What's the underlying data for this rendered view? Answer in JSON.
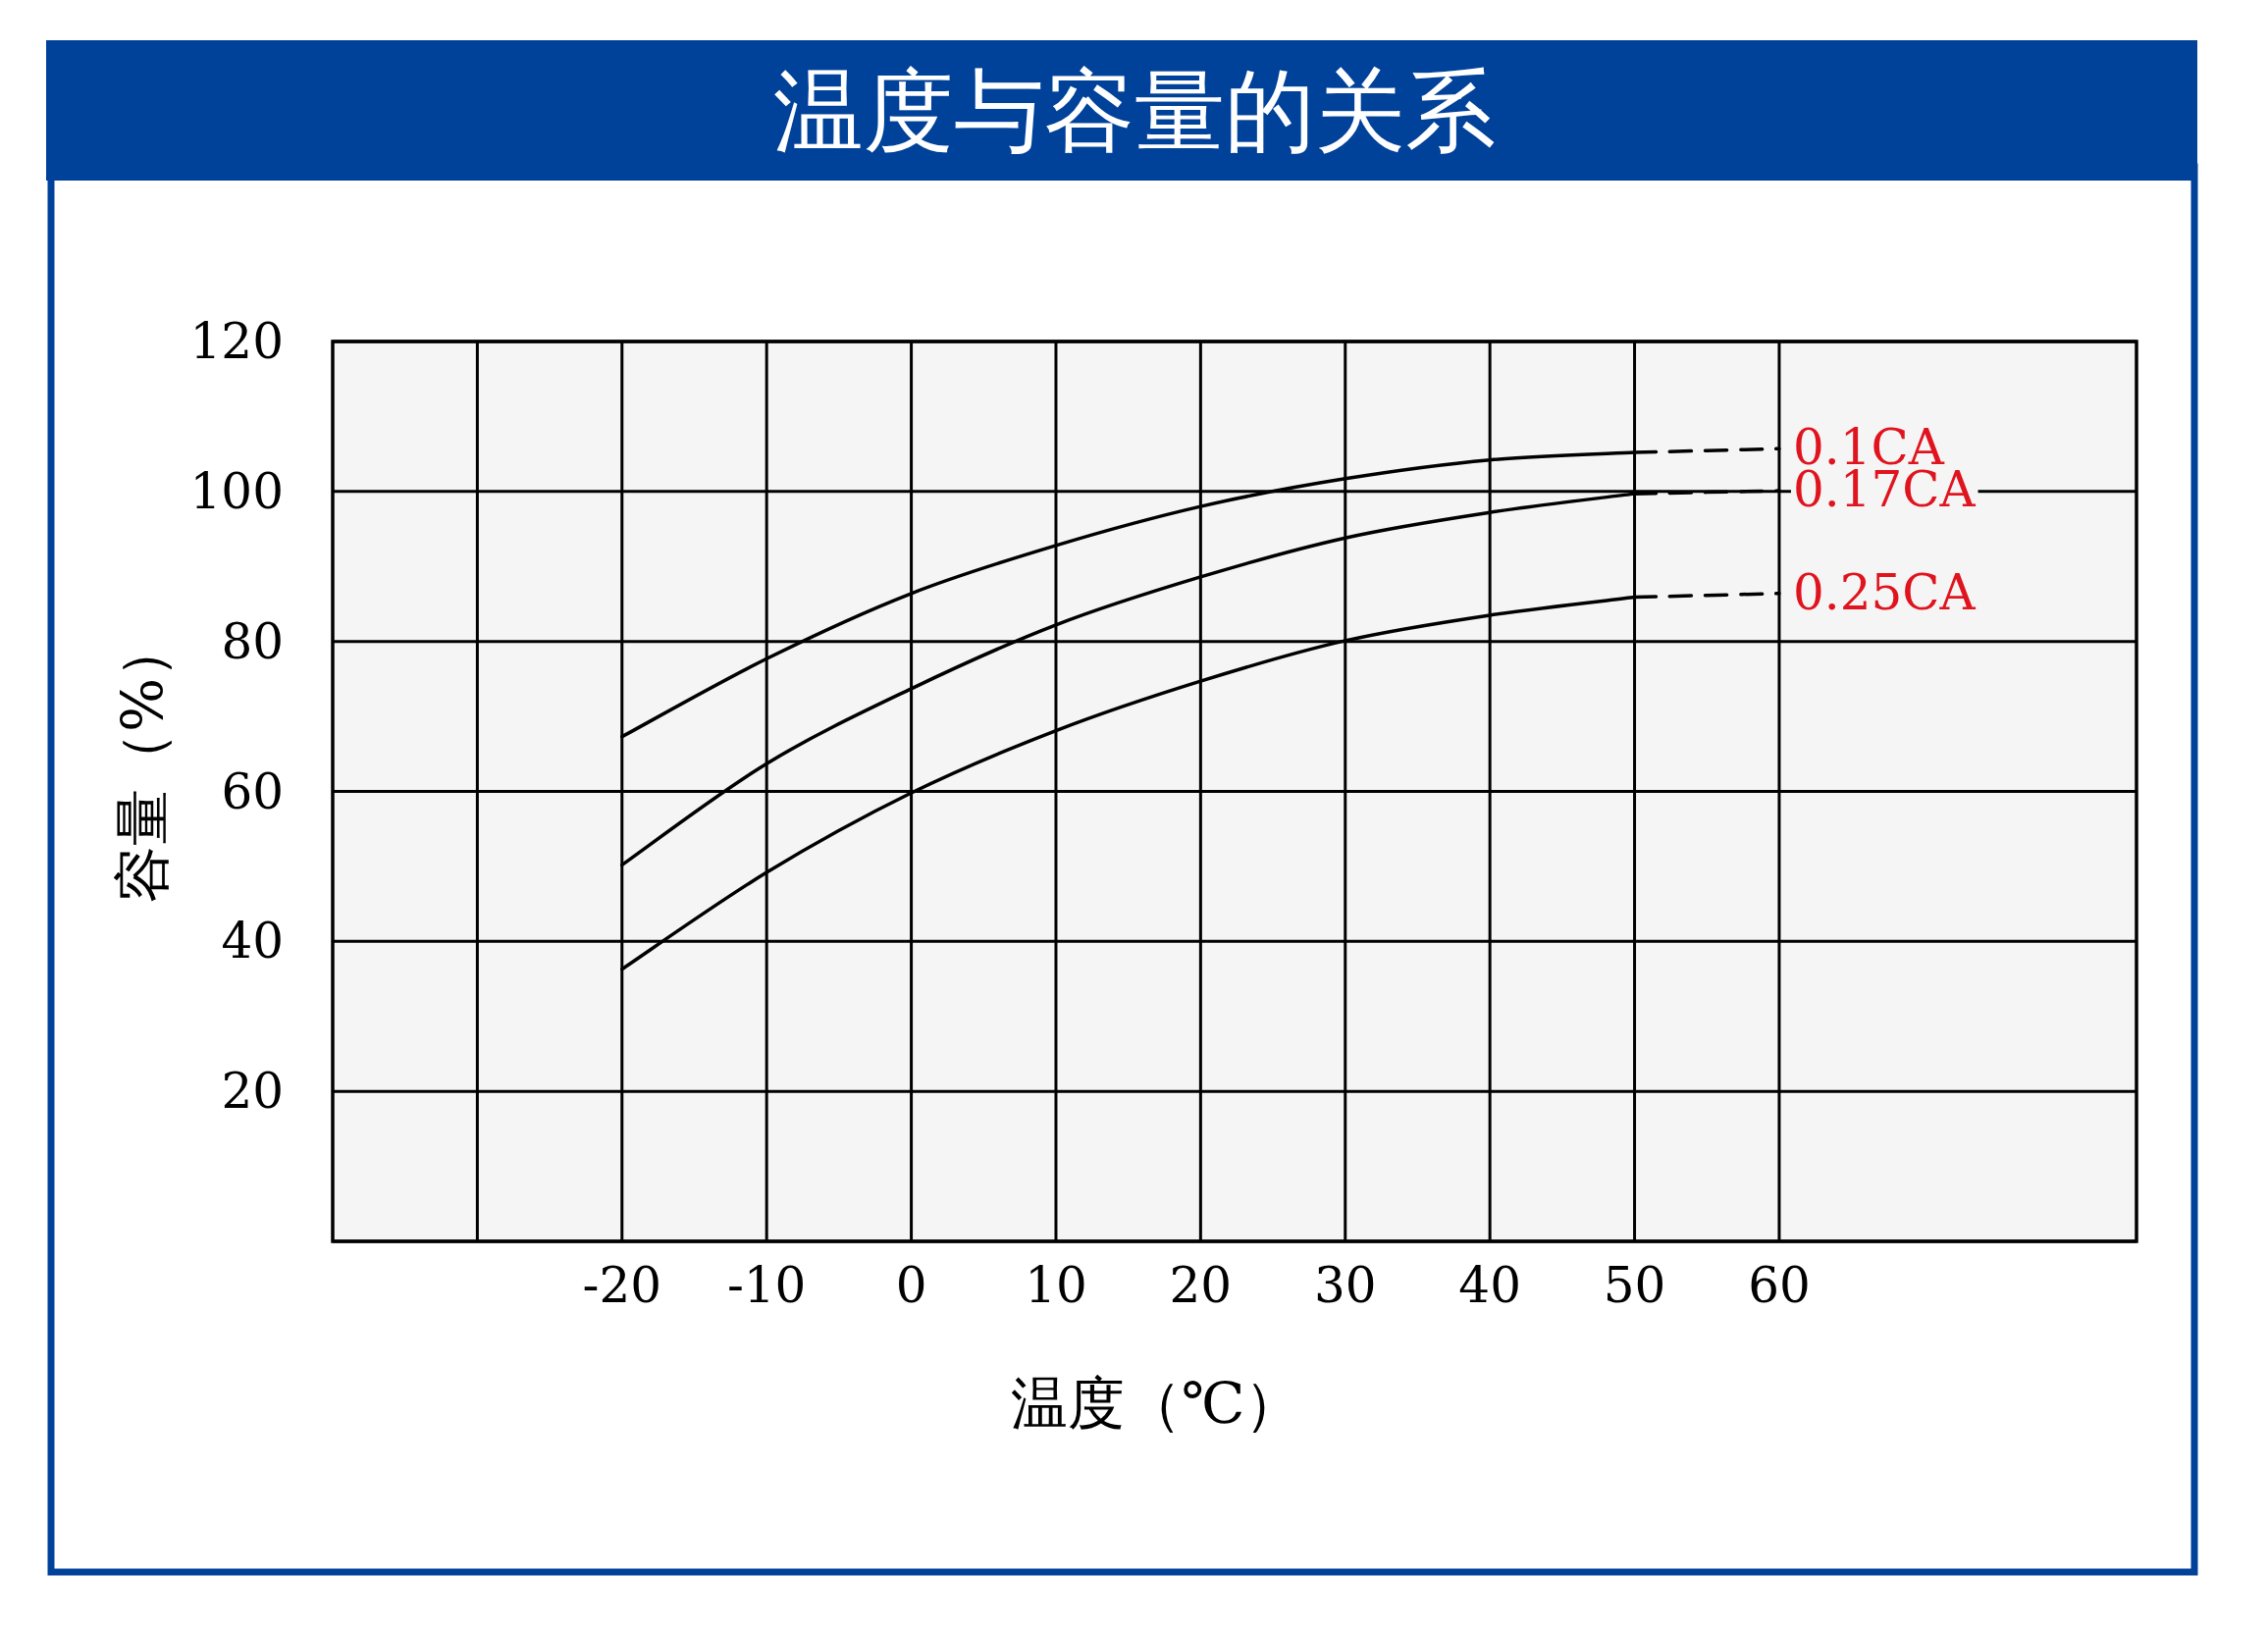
{
  "chart_data": {
    "type": "line",
    "title": "温度与容量的关系",
    "xlabel": "温度（℃）",
    "ylabel": "容量（%）",
    "xlim": [
      -40,
      84.7
    ],
    "ylim": [
      0,
      120
    ],
    "xticks": [
      {
        "value": -30,
        "label": null
      },
      -20,
      -10,
      0,
      10,
      20,
      30,
      40,
      50,
      60
    ],
    "yticks": [
      {
        "value": 0,
        "label": null
      },
      20,
      40,
      60,
      80,
      100,
      120
    ],
    "grid": true,
    "series": [
      {
        "color": "#000000",
        "line_style": "solid",
        "x": [
          -20,
          -10,
          0,
          10,
          20,
          30,
          40,
          50
        ],
        "values": [
          67.3,
          77.7,
          86.4,
          92.8,
          98,
          101.7,
          104.2,
          105.2
        ]
      },
      {
        "name": "0.1CA",
        "color": "#000000",
        "line_style": "dashed",
        "x": [
          50,
          60
        ],
        "values": [
          105.2,
          105.7
        ]
      },
      {
        "color": "#000000",
        "line_style": "solid",
        "x": [
          -20,
          -10,
          0,
          10,
          20,
          30,
          40,
          50
        ],
        "values": [
          50.2,
          63.7,
          73.7,
          82.2,
          88.6,
          93.8,
          97.2,
          99.7
        ]
      },
      {
        "name": "0.17CA",
        "color": "#000000",
        "line_style": "dashed",
        "x": [
          50,
          60
        ],
        "values": [
          99.7,
          100.1
        ]
      },
      {
        "color": "#000000",
        "line_style": "solid",
        "x": [
          -20,
          -10,
          0,
          10,
          20,
          30,
          40,
          50
        ],
        "values": [
          36.3,
          49.2,
          59.8,
          68.1,
          74.7,
          80.1,
          83.5,
          85.9
        ]
      },
      {
        "name": "0.25CA",
        "color": "#000000",
        "line_style": "dashed",
        "x": [
          50,
          60
        ],
        "values": [
          85.9,
          86.4
        ]
      }
    ]
  }
}
